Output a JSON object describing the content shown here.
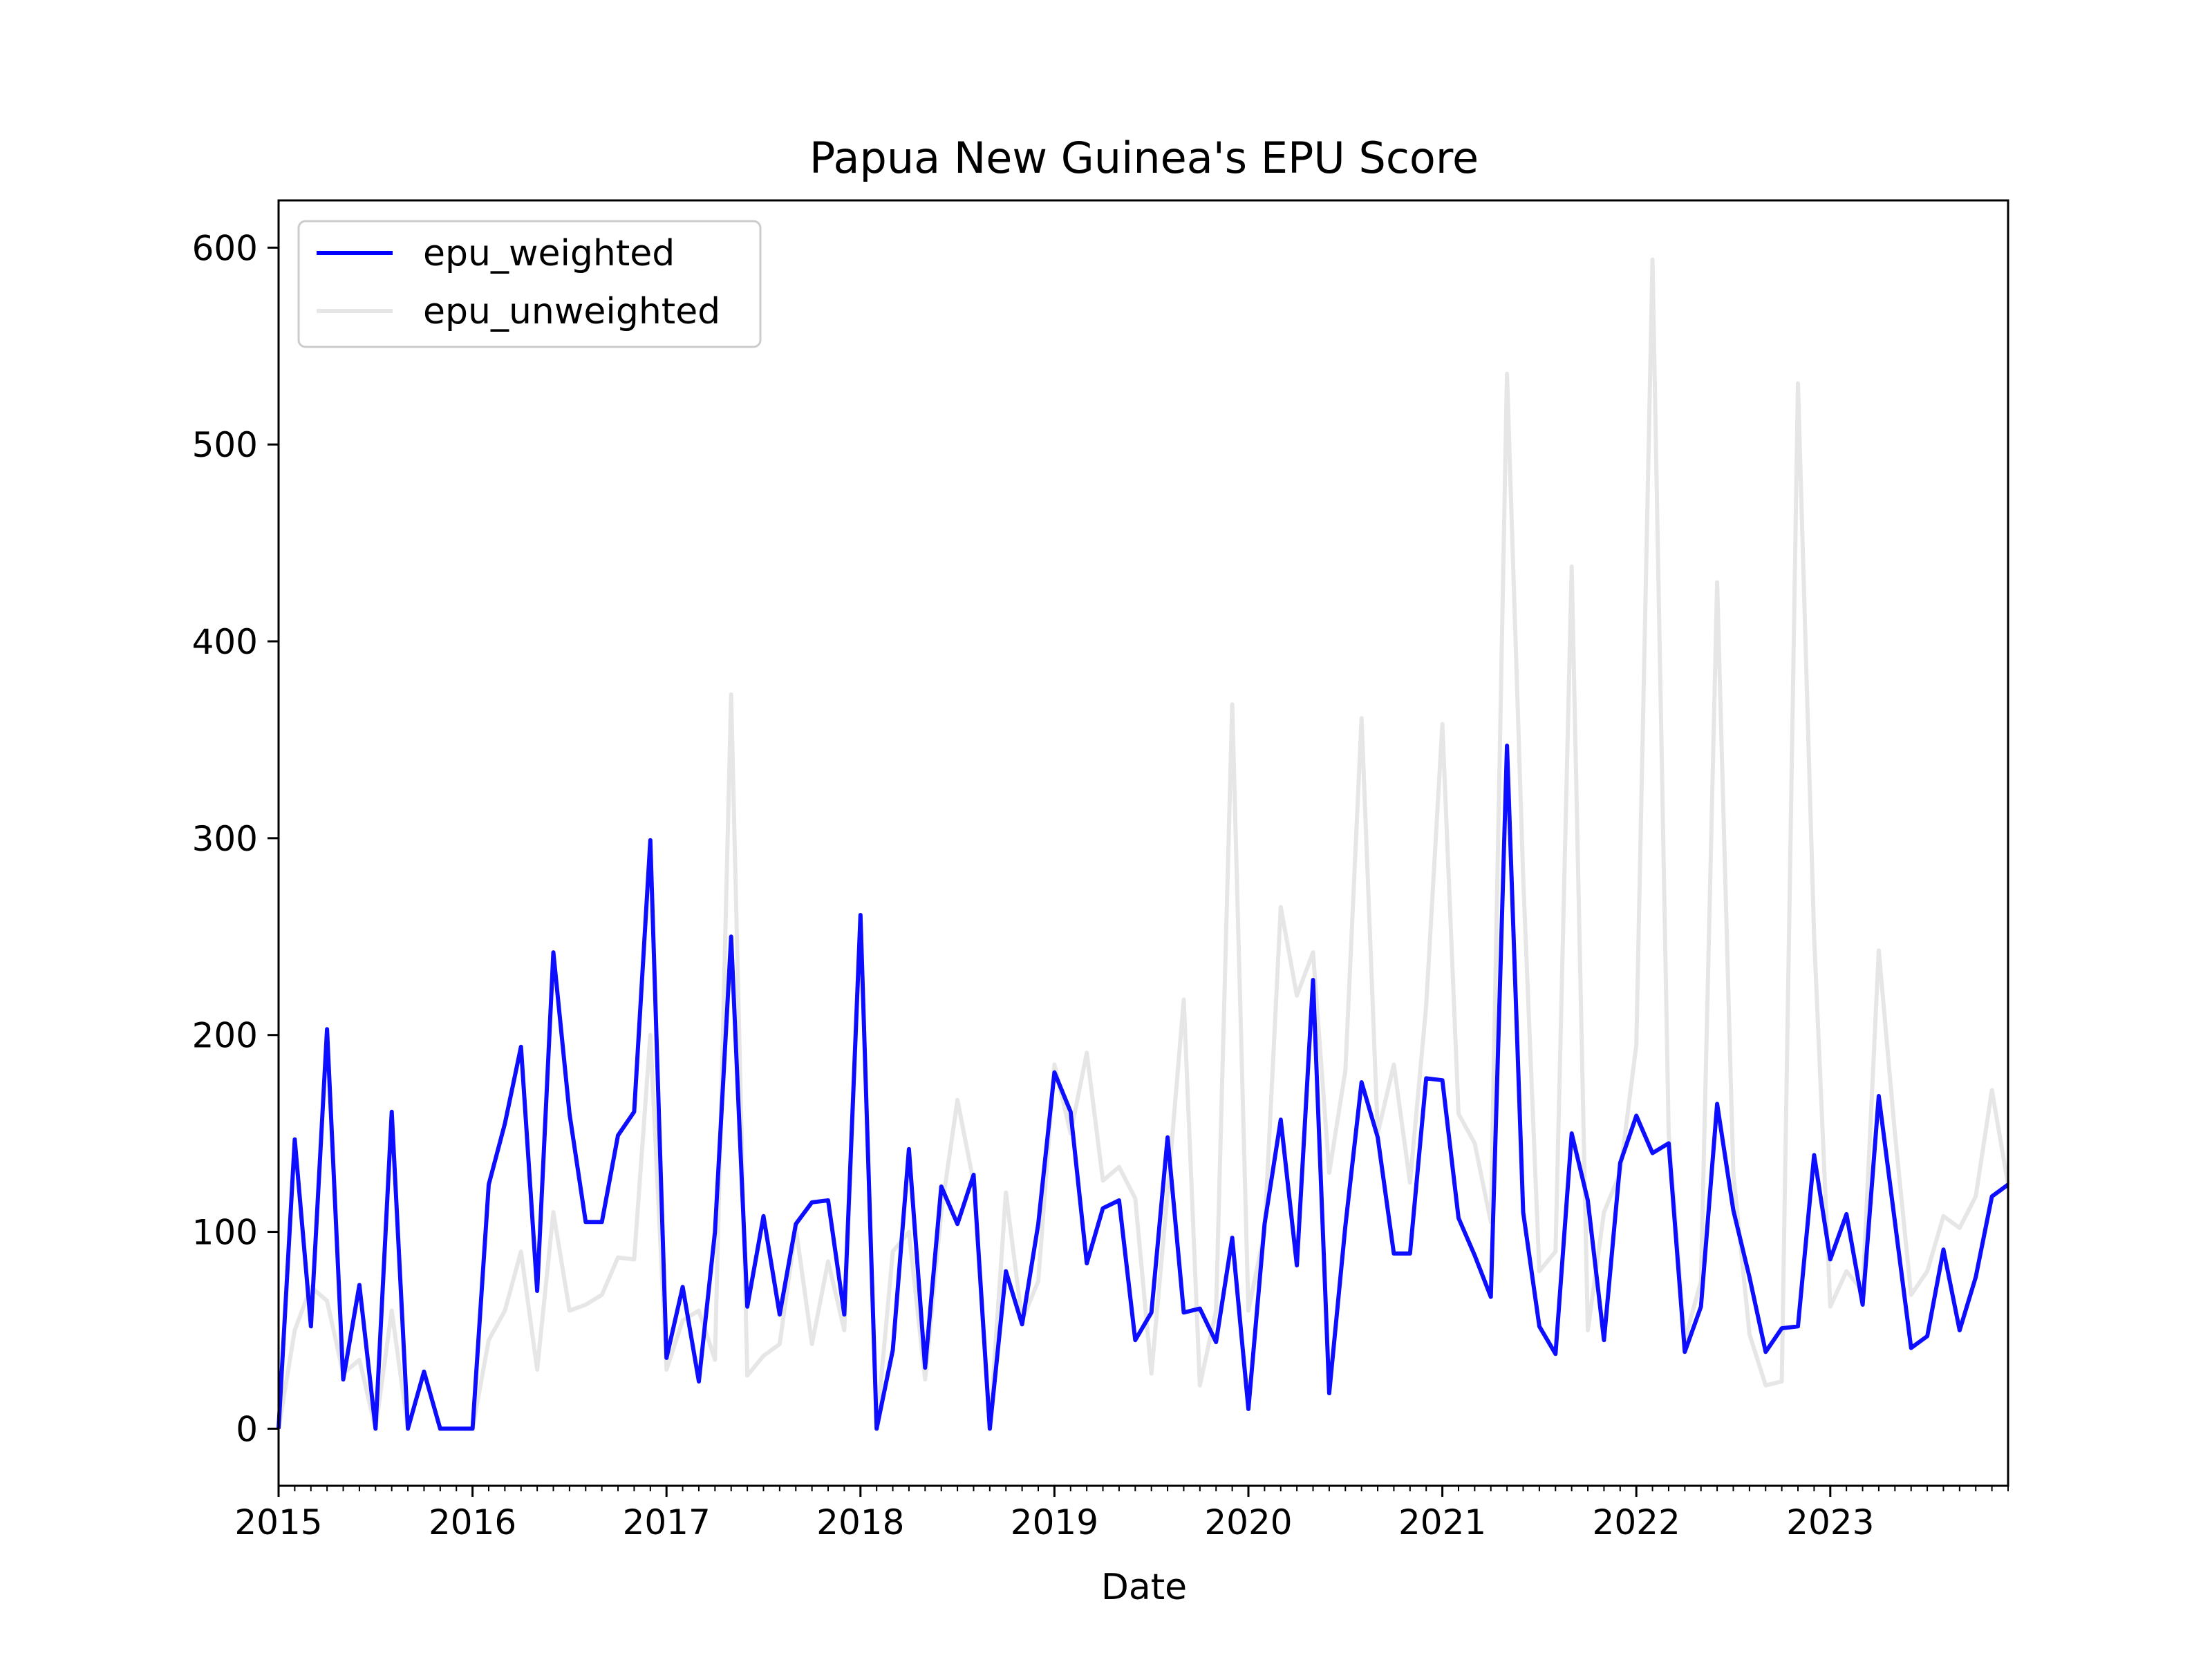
{
  "chart_data": {
    "type": "line",
    "title": "Papua New Guinea's EPU Score",
    "xlabel": "Date",
    "ylabel": "",
    "ylim": [
      -29,
      624
    ],
    "xlim": [
      "2015-01",
      "2023-12"
    ],
    "x_ticks": [
      "2015",
      "2016",
      "2017",
      "2018",
      "2019",
      "2020",
      "2021",
      "2022",
      "2023"
    ],
    "y_ticks": [
      0,
      100,
      200,
      300,
      400,
      500,
      600
    ],
    "legend": {
      "placement": "top-left"
    },
    "grid": false,
    "x": [
      "2015-01",
      "2015-02",
      "2015-03",
      "2015-04",
      "2015-05",
      "2015-06",
      "2015-07",
      "2015-08",
      "2015-09",
      "2015-10",
      "2015-11",
      "2015-12",
      "2016-01",
      "2016-02",
      "2016-03",
      "2016-04",
      "2016-05",
      "2016-06",
      "2016-07",
      "2016-08",
      "2016-09",
      "2016-10",
      "2016-11",
      "2016-12",
      "2017-01",
      "2017-02",
      "2017-03",
      "2017-04",
      "2017-05",
      "2017-06",
      "2017-07",
      "2017-08",
      "2017-09",
      "2017-10",
      "2017-11",
      "2017-12",
      "2018-01",
      "2018-02",
      "2018-03",
      "2018-04",
      "2018-05",
      "2018-06",
      "2018-07",
      "2018-08",
      "2018-09",
      "2018-10",
      "2018-11",
      "2018-12",
      "2019-01",
      "2019-02",
      "2019-03",
      "2019-04",
      "2019-05",
      "2019-06",
      "2019-07",
      "2019-08",
      "2019-09",
      "2019-10",
      "2019-11",
      "2019-12",
      "2020-01",
      "2020-02",
      "2020-03",
      "2020-04",
      "2020-05",
      "2020-06",
      "2020-07",
      "2020-08",
      "2020-09",
      "2020-10",
      "2020-11",
      "2020-12",
      "2021-01",
      "2021-02",
      "2021-03",
      "2021-04",
      "2021-05",
      "2021-06",
      "2021-07",
      "2021-08",
      "2021-09",
      "2021-10",
      "2021-11",
      "2021-12",
      "2022-01",
      "2022-02",
      "2022-03",
      "2022-04",
      "2022-05",
      "2022-06",
      "2022-07",
      "2022-08",
      "2022-09",
      "2022-10",
      "2022-11",
      "2022-12",
      "2023-01",
      "2023-02",
      "2023-03",
      "2023-04",
      "2023-05",
      "2023-06",
      "2023-07",
      "2023-08",
      "2023-09",
      "2023-10",
      "2023-11",
      "2023-12"
    ],
    "series": [
      {
        "name": "epu_weighted",
        "color": "#0000ff",
        "values": [
          0,
          147,
          52,
          203,
          25,
          73,
          0,
          161,
          0,
          29,
          0,
          0,
          0,
          124,
          155,
          194,
          70,
          242,
          160,
          105,
          105,
          149,
          161,
          299,
          36,
          72,
          24,
          100,
          250,
          62,
          108,
          58,
          104,
          115,
          116,
          58,
          261,
          0,
          40,
          142,
          31,
          123,
          104,
          129,
          0,
          80,
          53,
          104,
          181,
          161,
          84,
          112,
          116,
          45,
          59,
          148,
          59,
          61,
          44,
          97,
          10,
          104,
          157,
          83,
          228,
          18,
          103,
          176,
          148,
          89,
          89,
          178,
          177,
          107,
          88,
          67,
          347,
          110,
          52,
          38,
          150,
          116,
          45,
          135,
          159,
          140,
          145,
          39,
          62,
          165,
          111,
          77,
          39,
          51,
          52,
          139,
          86,
          109,
          63,
          169,
          105,
          41,
          47,
          91,
          50,
          77,
          118,
          124
        ]
      },
      {
        "name": "epu_unweighted",
        "color": "#e6e6e6",
        "values": [
          0,
          50,
          72,
          65,
          28,
          35,
          0,
          60,
          0,
          29,
          0,
          0,
          0,
          45,
          60,
          90,
          30,
          110,
          60,
          63,
          68,
          87,
          86,
          200,
          30,
          55,
          60,
          35,
          373,
          27,
          37,
          43,
          102,
          43,
          85,
          50,
          261,
          0,
          90,
          100,
          25,
          110,
          167,
          125,
          0,
          120,
          55,
          75,
          185,
          150,
          191,
          126,
          133,
          117,
          28,
          120,
          218,
          22,
          60,
          368,
          60,
          100,
          265,
          220,
          242,
          130,
          182,
          361,
          150,
          185,
          125,
          215,
          358,
          160,
          145,
          105,
          536,
          280,
          80,
          90,
          438,
          50,
          110,
          130,
          195,
          594,
          150,
          45,
          75,
          430,
          130,
          48,
          22,
          24,
          531,
          250,
          62,
          80,
          70,
          243,
          150,
          68,
          80,
          108,
          102,
          118,
          172,
          124
        ]
      }
    ]
  }
}
